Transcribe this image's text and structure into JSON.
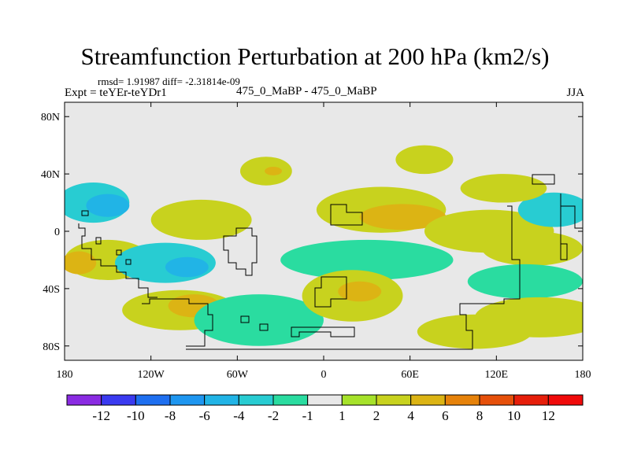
{
  "chart_data": {
    "type": "heatmap",
    "title": "Streamfunction Perturbation at 200 hPa (km2/s)",
    "stats_text": "rmsd= 1.91987 diff= -2.31814e-09",
    "experiment": "Expt = teYEr-teYDr1",
    "subtitle": "475_0_MaBP - 475_0_MaBP",
    "season": "JJA",
    "x_range": [
      -180,
      180
    ],
    "y_range": [
      -90,
      90
    ],
    "x_ticks": [
      {
        "value": -180,
        "label": "180"
      },
      {
        "value": -120,
        "label": "120W"
      },
      {
        "value": -60,
        "label": "60W"
      },
      {
        "value": 0,
        "label": "0"
      },
      {
        "value": 60,
        "label": "60E"
      },
      {
        "value": 120,
        "label": "120E"
      },
      {
        "value": 180,
        "label": "180"
      }
    ],
    "y_ticks": [
      {
        "value": 80,
        "label": "80N"
      },
      {
        "value": 40,
        "label": "40N"
      },
      {
        "value": 0,
        "label": "0"
      },
      {
        "value": -40,
        "label": "40S"
      },
      {
        "value": -80,
        "label": "80S"
      }
    ],
    "colorbar": {
      "levels": [
        "-12",
        "-10",
        "-8",
        "-6",
        "-4",
        "-2",
        "-1",
        "1",
        "2",
        "4",
        "6",
        "8",
        "10",
        "12"
      ],
      "colors": [
        "#8a2be2",
        "#3a3af0",
        "#1e6ff0",
        "#1e96f0",
        "#21b4e6",
        "#28ccd2",
        "#2adca0",
        "#e8e8e8",
        "#a6e22a",
        "#c8d21e",
        "#dcb414",
        "#e6820a",
        "#e6500a",
        "#e61e0a",
        "#f00a0a"
      ]
    },
    "anomaly_cells": [
      {
        "lon": -160,
        "lat": 20,
        "rx": 25,
        "ry": 14,
        "value": -3
      },
      {
        "lon": -150,
        "lat": 18,
        "rx": 15,
        "ry": 8,
        "value": -5
      },
      {
        "lon": -150,
        "lat": -20,
        "rx": 30,
        "ry": 14,
        "value": 3
      },
      {
        "lon": -170,
        "lat": -22,
        "rx": 12,
        "ry": 8,
        "value": 5
      },
      {
        "lon": -110,
        "lat": -22,
        "rx": 35,
        "ry": 14,
        "value": -3
      },
      {
        "lon": -95,
        "lat": -25,
        "rx": 15,
        "ry": 7,
        "value": -5
      },
      {
        "lon": -85,
        "lat": 8,
        "rx": 35,
        "ry": 14,
        "value": 2
      },
      {
        "lon": -100,
        "lat": -55,
        "rx": 40,
        "ry": 14,
        "value": 2
      },
      {
        "lon": -90,
        "lat": -52,
        "rx": 18,
        "ry": 8,
        "value": 4
      },
      {
        "lon": -45,
        "lat": -62,
        "rx": 45,
        "ry": 18,
        "value": -2
      },
      {
        "lon": -40,
        "lat": 42,
        "rx": 18,
        "ry": 10,
        "value": 2
      },
      {
        "lon": -35,
        "lat": 42,
        "rx": 6,
        "ry": 3,
        "value": 5
      },
      {
        "lon": 40,
        "lat": 15,
        "rx": 45,
        "ry": 16,
        "value": 2
      },
      {
        "lon": 55,
        "lat": 10,
        "rx": 30,
        "ry": 9,
        "value": 4
      },
      {
        "lon": 30,
        "lat": -20,
        "rx": 60,
        "ry": 14,
        "value": -2
      },
      {
        "lon": 20,
        "lat": -45,
        "rx": 35,
        "ry": 18,
        "value": 3
      },
      {
        "lon": 25,
        "lat": -42,
        "rx": 15,
        "ry": 7,
        "value": 5
      },
      {
        "lon": 115,
        "lat": 0,
        "rx": 45,
        "ry": 15,
        "value": 2
      },
      {
        "lon": 145,
        "lat": -12,
        "rx": 35,
        "ry": 12,
        "value": 2
      },
      {
        "lon": 160,
        "lat": 15,
        "rx": 25,
        "ry": 12,
        "value": -3
      },
      {
        "lon": 140,
        "lat": -35,
        "rx": 40,
        "ry": 12,
        "value": -2
      },
      {
        "lon": 150,
        "lat": -60,
        "rx": 45,
        "ry": 14,
        "value": 2
      },
      {
        "lon": 105,
        "lat": -70,
        "rx": 40,
        "ry": 12,
        "value": 2
      },
      {
        "lon": 70,
        "lat": 50,
        "rx": 20,
        "ry": 10,
        "value": 2
      },
      {
        "lon": 125,
        "lat": 30,
        "rx": 30,
        "ry": 10,
        "value": 2
      }
    ]
  }
}
